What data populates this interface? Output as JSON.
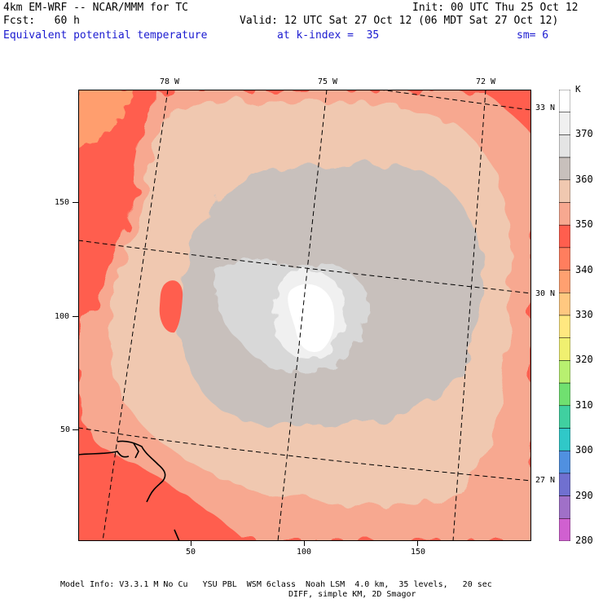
{
  "header": {
    "model": "4km EM-WRF -- NCAR/MMM for TC",
    "init": "Init: 00 UTC Thu 25 Oct 12",
    "fcst": "Fcst:   60 h",
    "valid": "Valid: 12 UTC Sat 27 Oct 12 (06 MDT Sat 27 Oct 12)",
    "field": "Equivalent potential temperature",
    "level": "at k-index =  35",
    "smoothing": "sm= 6"
  },
  "map": {
    "lon_labels": [
      "78 W",
      "75 W",
      "72 W"
    ],
    "lat_labels": [
      "33 N",
      "30 N",
      "27 N"
    ],
    "y_ticks": [
      "150",
      "100",
      "50"
    ],
    "x_ticks": [
      "50",
      "100",
      "150"
    ],
    "colors": {
      "c330": "#ff9e6e",
      "c340": "#ff5e4e",
      "c345": "#f7a890",
      "c350": "#f0c8b0",
      "c355": "#c8c0bc",
      "c360": "#d8d8d8",
      "c370": "#f0f0f0",
      "c375": "#ffffff",
      "coast": "#000000"
    }
  },
  "legend": {
    "unit": "K",
    "labels": [
      "370",
      "360",
      "350",
      "340",
      "330",
      "320",
      "310",
      "300",
      "290",
      "280"
    ],
    "colors": [
      "#ffffff",
      "#f0f0f0",
      "#e4e4e4",
      "#c8c0bc",
      "#f0c8b0",
      "#f7a890",
      "#ff5e4e",
      "#ff7e5e",
      "#ffa070",
      "#ffc880",
      "#ffe880",
      "#f0f070",
      "#b8f070",
      "#70e070",
      "#40d0a0",
      "#30c8c8",
      "#5090e0",
      "#7070d0",
      "#a070c8",
      "#d060d0"
    ]
  },
  "footer": {
    "line1": "Model Info: V3.3.1 M No Cu   YSU PBL  WSM 6class  Noah LSM  4.0 km,  35 levels,   20 sec",
    "line2": "DIFF, simple KM, 2D Smagor"
  }
}
